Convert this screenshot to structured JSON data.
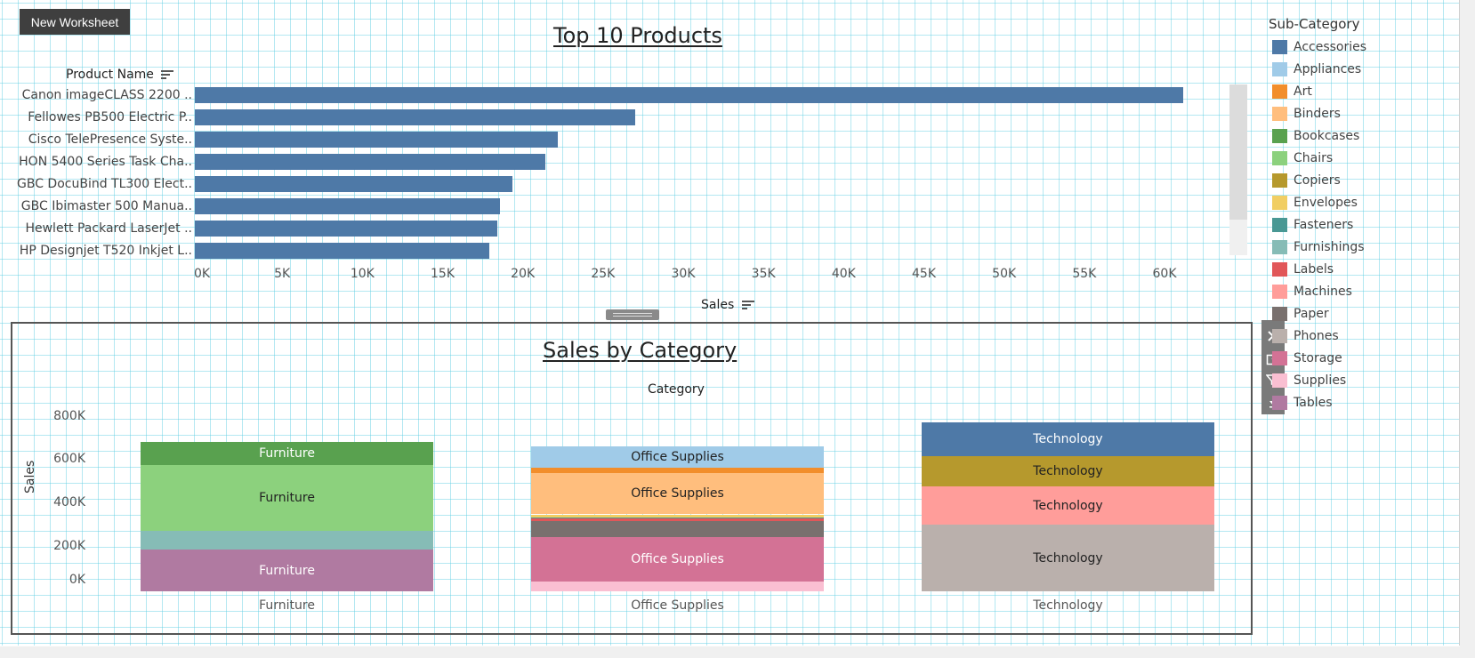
{
  "toolbar": {
    "new_worksheet": "New Worksheet"
  },
  "top_chart": {
    "title": "Top 10 Products",
    "row_header": "Product Name",
    "axis_title": "Sales",
    "ticks": [
      "0K",
      "5K",
      "10K",
      "15K",
      "20K",
      "25K",
      "30K",
      "35K",
      "40K",
      "45K",
      "50K",
      "55K",
      "60K"
    ],
    "products": [
      "Canon imageCLASS 2200 ..",
      "Fellowes PB500 Electric P..",
      "Cisco TelePresence Syste..",
      "HON 5400 Series Task Cha..",
      "GBC DocuBind TL300 Elect..",
      "GBC Ibimaster 500 Manua..",
      "Hewlett Packard LaserJet ..",
      "HP Designjet T520 Inkjet L.."
    ]
  },
  "bottom_chart": {
    "title": "Sales by Category",
    "column_header": "Category",
    "y_axis_title": "Sales",
    "y_ticks": [
      "800K",
      "600K",
      "400K",
      "200K",
      "0K"
    ],
    "categories": [
      "Furniture",
      "Office Supplies",
      "Technology"
    ]
  },
  "legend": {
    "title": "Sub-Category",
    "items": [
      {
        "label": "Accessories",
        "color": "#4e79a7"
      },
      {
        "label": "Appliances",
        "color": "#a0cbe8"
      },
      {
        "label": "Art",
        "color": "#f28e2b"
      },
      {
        "label": "Binders",
        "color": "#ffbe7d"
      },
      {
        "label": "Bookcases",
        "color": "#59a14f"
      },
      {
        "label": "Chairs",
        "color": "#8cd17d"
      },
      {
        "label": "Copiers",
        "color": "#b6992d"
      },
      {
        "label": "Envelopes",
        "color": "#f1ce63"
      },
      {
        "label": "Fasteners",
        "color": "#499894"
      },
      {
        "label": "Furnishings",
        "color": "#86bcb6"
      },
      {
        "label": "Labels",
        "color": "#e15759"
      },
      {
        "label": "Machines",
        "color": "#ff9d9a"
      },
      {
        "label": "Paper",
        "color": "#79706e"
      },
      {
        "label": "Phones",
        "color": "#bab0ac"
      },
      {
        "label": "Storage",
        "color": "#d37295"
      },
      {
        "label": "Supplies",
        "color": "#fabfd2"
      },
      {
        "label": "Tables",
        "color": "#b07aa1"
      }
    ]
  },
  "chart_data": [
    {
      "type": "bar",
      "orientation": "horizontal",
      "title": "Top 10 Products",
      "xlabel": "Sales",
      "ylabel": "Product Name",
      "xlim": [
        0,
        65000
      ],
      "categories": [
        "Canon imageCLASS 2200 ..",
        "Fellowes PB500 Electric P..",
        "Cisco TelePresence Syste..",
        "HON 5400 Series Task Cha..",
        "GBC DocuBind TL300 Elect..",
        "GBC Ibimaster 500 Manua..",
        "Hewlett Packard LaserJet ..",
        "HP Designjet T520 Inkjet L.."
      ],
      "values": [
        61600,
        27450,
        22640,
        21870,
        19820,
        19020,
        18840,
        18370
      ],
      "color": "#4e79a7",
      "grid": false
    },
    {
      "type": "bar",
      "stacked": true,
      "title": "Sales by Category",
      "xlabel": "Category",
      "ylabel": "Sales",
      "categories": [
        "Furniture",
        "Office Supplies",
        "Technology"
      ],
      "series": [
        {
          "name": "Tables",
          "values": [
            206965,
            0,
            0
          ],
          "color": "#b07aa1"
        },
        {
          "name": "Furnishings",
          "values": [
            91705,
            0,
            0
          ],
          "color": "#86bcb6"
        },
        {
          "name": "Chairs",
          "values": [
            328449,
            0,
            0
          ],
          "color": "#8cd17d"
        },
        {
          "name": "Bookcases",
          "values": [
            114880,
            0,
            0
          ],
          "color": "#59a14f"
        },
        {
          "name": "Supplies",
          "values": [
            0,
            46674,
            0
          ],
          "color": "#fabfd2"
        },
        {
          "name": "Storage",
          "values": [
            0,
            223844,
            0
          ],
          "color": "#d37295"
        },
        {
          "name": "Paper",
          "values": [
            0,
            78479,
            0
          ],
          "color": "#79706e"
        },
        {
          "name": "Labels",
          "values": [
            0,
            12486,
            0
          ],
          "color": "#e15759"
        },
        {
          "name": "Fasteners",
          "values": [
            0,
            3024,
            0
          ],
          "color": "#499894"
        },
        {
          "name": "Envelopes",
          "values": [
            0,
            16476,
            0
          ],
          "color": "#f1ce63"
        },
        {
          "name": "Binders",
          "values": [
            0,
            203413,
            0
          ],
          "color": "#ffbe7d"
        },
        {
          "name": "Art",
          "values": [
            0,
            27119,
            0
          ],
          "color": "#f28e2b"
        },
        {
          "name": "Appliances",
          "values": [
            0,
            107532,
            0
          ],
          "color": "#a0cbe8"
        },
        {
          "name": "Phones",
          "values": [
            0,
            0,
            330007
          ],
          "color": "#bab0ac"
        },
        {
          "name": "Machines",
          "values": [
            0,
            0,
            189239
          ],
          "color": "#ff9d9a"
        },
        {
          "name": "Copiers",
          "values": [
            0,
            0,
            149528
          ],
          "color": "#b6992d"
        },
        {
          "name": "Accessories",
          "values": [
            0,
            0,
            167380
          ],
          "color": "#4e79a7"
        }
      ],
      "ylim": [
        0,
        900000
      ],
      "grid": false
    }
  ]
}
